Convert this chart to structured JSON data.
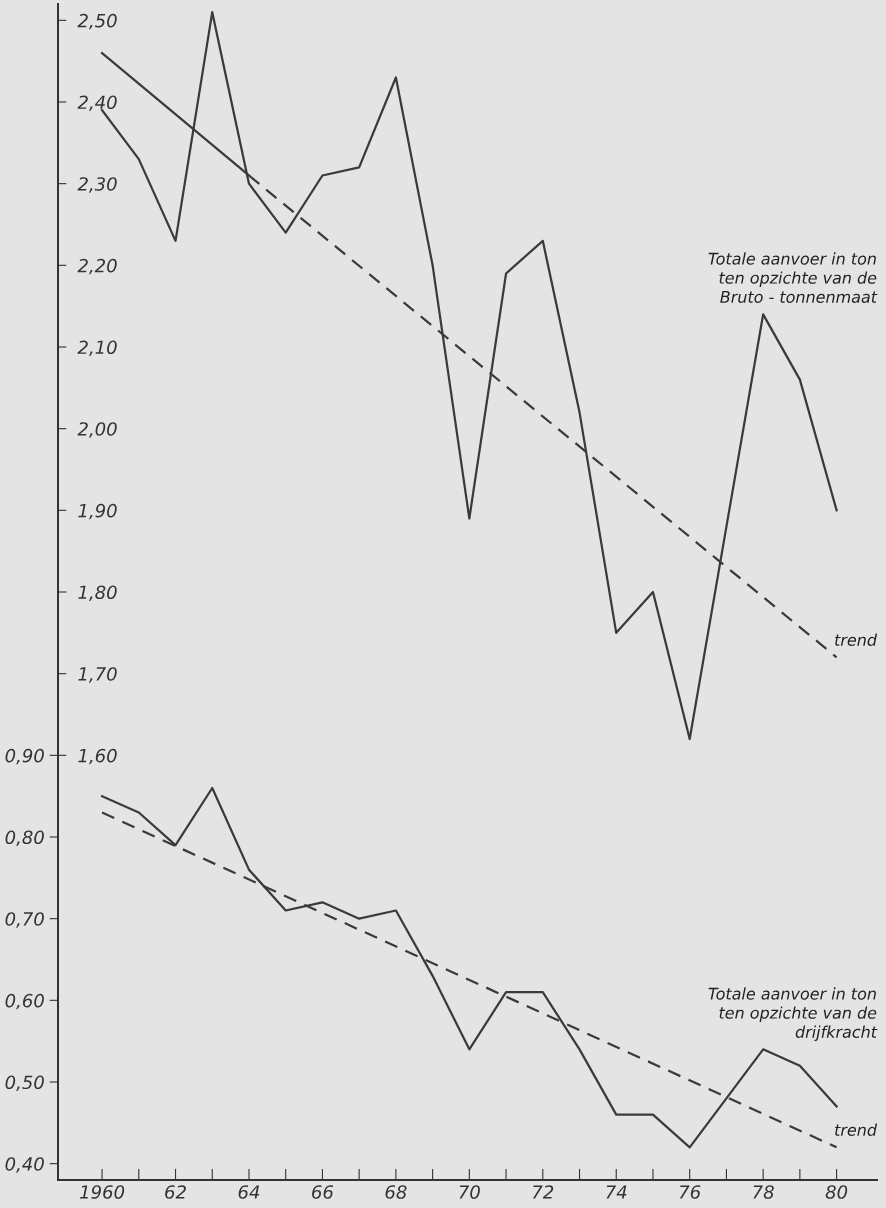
{
  "chart_data": {
    "type": "line",
    "xlim": [
      1958.8,
      1981.1
    ],
    "ylim": [
      1.08,
      2.52
    ],
    "y2lim": [
      0.38,
      1.82
    ],
    "grid": false,
    "marker": "none",
    "xticks": [
      {
        "value": 1960,
        "label": "1960"
      },
      {
        "value": 1961,
        "label": null
      },
      {
        "value": 1962,
        "label": "62"
      },
      {
        "value": 1963,
        "label": null
      },
      {
        "value": 1964,
        "label": "64"
      },
      {
        "value": 1965,
        "label": null
      },
      {
        "value": 1966,
        "label": "66"
      },
      {
        "value": 1967,
        "label": null
      },
      {
        "value": 1968,
        "label": "68"
      },
      {
        "value": 1969,
        "label": null
      },
      {
        "value": 1970,
        "label": "70"
      },
      {
        "value": 1971,
        "label": null
      },
      {
        "value": 1972,
        "label": "72"
      },
      {
        "value": 1973,
        "label": null
      },
      {
        "value": 1974,
        "label": "74"
      },
      {
        "value": 1975,
        "label": null
      },
      {
        "value": 1976,
        "label": "76"
      },
      {
        "value": 1977,
        "label": null
      },
      {
        "value": 1978,
        "label": "78"
      },
      {
        "value": 1979,
        "label": null
      },
      {
        "value": 1980,
        "label": "80"
      }
    ],
    "yticks": [
      {
        "value": 1.6,
        "label": "1,60"
      },
      {
        "value": 1.7,
        "label": "1,70"
      },
      {
        "value": 1.8,
        "label": "1,80"
      },
      {
        "value": 1.9,
        "label": "1,90"
      },
      {
        "value": 2.0,
        "label": "2,00"
      },
      {
        "value": 2.1,
        "label": "2,10"
      },
      {
        "value": 2.2,
        "label": "2,20"
      },
      {
        "value": 2.3,
        "label": "2,30"
      },
      {
        "value": 2.4,
        "label": "2,40"
      },
      {
        "value": 2.5,
        "label": "2,50"
      }
    ],
    "y2ticks": [
      {
        "value": 0.4,
        "label": "0,40"
      },
      {
        "value": 0.5,
        "label": "0,50"
      },
      {
        "value": 0.6,
        "label": "0,60"
      },
      {
        "value": 0.7,
        "label": "0,70"
      },
      {
        "value": 0.8,
        "label": "0,80"
      },
      {
        "value": 0.9,
        "label": "0,90"
      }
    ],
    "series": [
      {
        "name": "Totale aanvoer in ton\nten opzichte van de\nBruto - tonnenmaat",
        "color": "#3a3a3a",
        "line_style": "solid",
        "x": [
          1960,
          1961,
          1962,
          1963,
          1964,
          1965,
          1966,
          1967,
          1968,
          1969,
          1970,
          1971,
          1972,
          1973,
          1974,
          1975,
          1976,
          1977,
          1978,
          1979,
          1980
        ],
        "values": [
          2.39,
          2.33,
          2.23,
          2.51,
          2.3,
          2.24,
          2.31,
          2.32,
          2.43,
          2.2,
          1.89,
          2.19,
          2.23,
          2.02,
          1.75,
          1.8,
          1.62,
          1.88,
          2.14,
          2.06,
          1.9
        ]
      },
      {
        "color": "#3a3a3a",
        "line_style": "solid",
        "x": [
          1960,
          1964
        ],
        "values": [
          2.46,
          2.31
        ]
      },
      {
        "name": "trend",
        "color": "#3a3a3a",
        "line_style": "dashed",
        "x": [
          1964,
          1980
        ],
        "values": [
          2.31,
          1.72
        ]
      },
      {
        "name": "Totale aanvoer in ton\nten opzichte van de\ndrijfkracht",
        "axis": "y2",
        "color": "#3a3a3a",
        "line_style": "solid",
        "x": [
          1960,
          1961,
          1962,
          1963,
          1964,
          1965,
          1966,
          1967,
          1968,
          1969,
          1970,
          1971,
          1972,
          1973,
          1974,
          1975,
          1976,
          1977,
          1978,
          1979,
          1980
        ],
        "values": [
          0.85,
          0.83,
          0.79,
          0.86,
          0.76,
          0.71,
          0.72,
          0.7,
          0.71,
          0.63,
          0.54,
          0.61,
          0.61,
          0.54,
          0.46,
          0.46,
          0.42,
          0.48,
          0.54,
          0.52,
          0.47
        ]
      },
      {
        "name": "trend",
        "axis": "y2",
        "color": "#3a3a3a",
        "line_style": "dashed",
        "x": [
          1960,
          1980
        ],
        "values": [
          0.83,
          0.42
        ]
      }
    ]
  }
}
